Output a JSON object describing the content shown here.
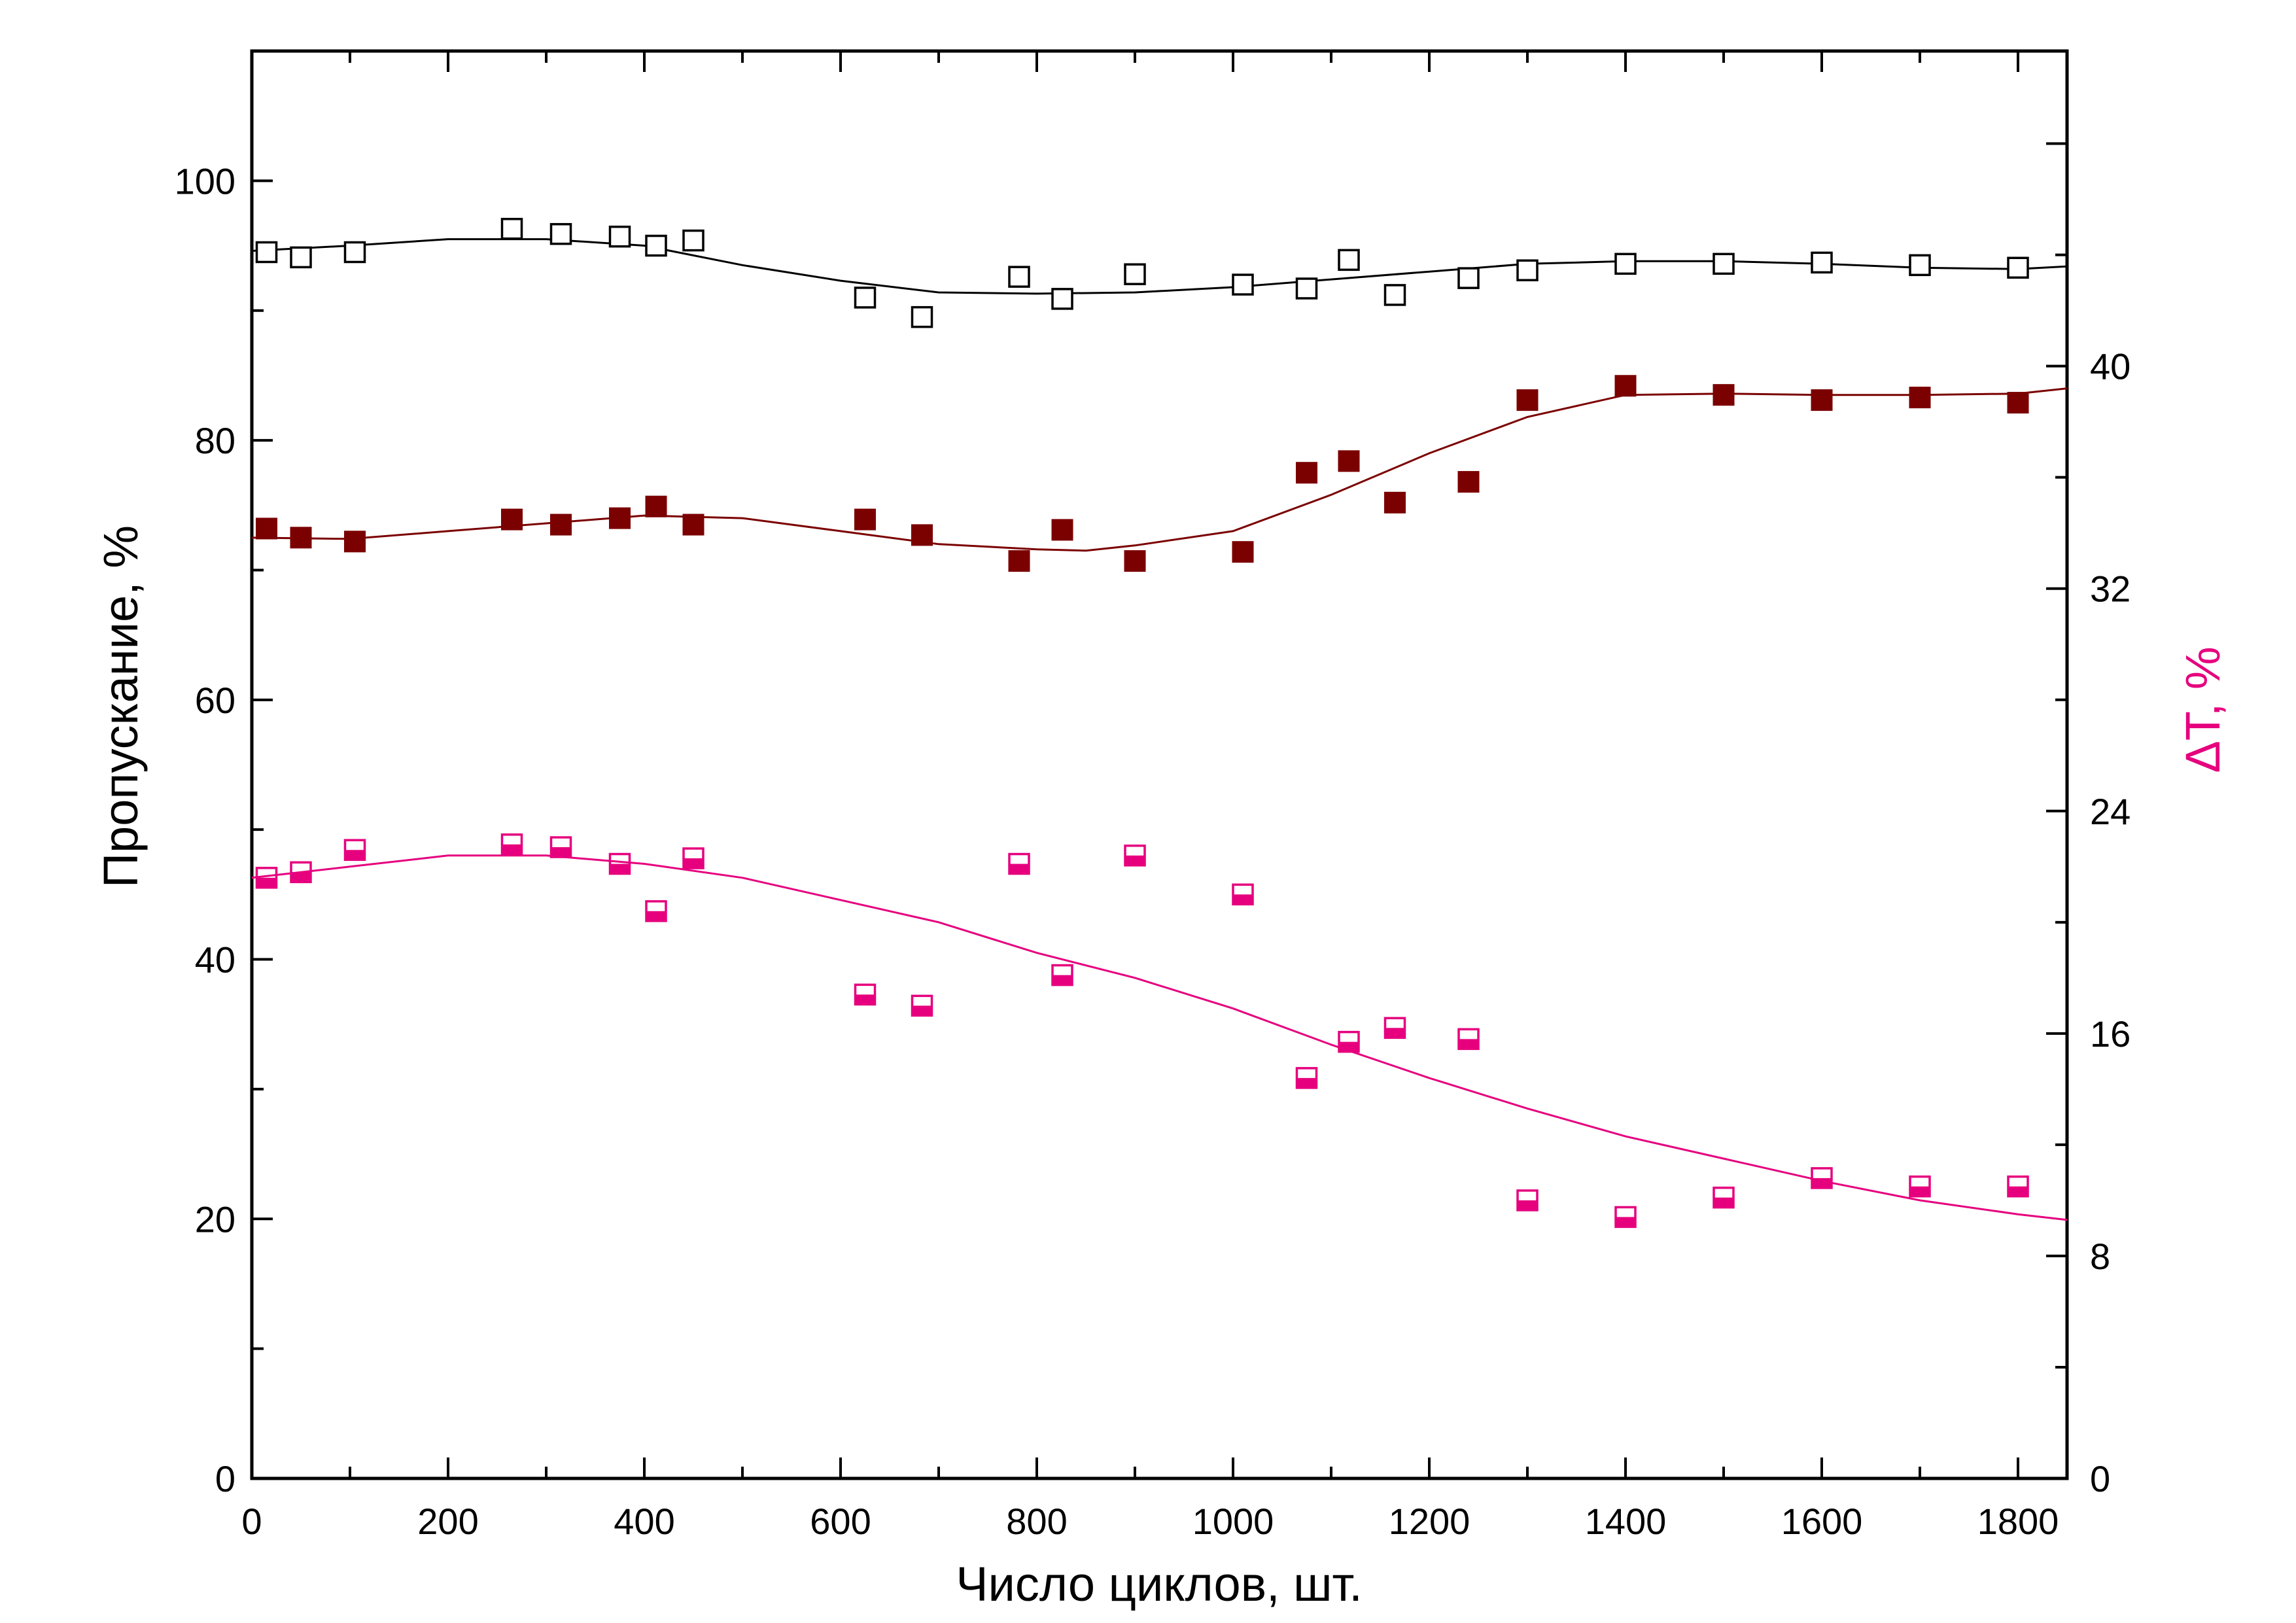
{
  "chart_data": {
    "type": "scatter",
    "xlabel": "Число циклов, шт.",
    "ylabel": "Пропускание, %",
    "y2label": "ΔT, %",
    "xlim": [
      0,
      1850
    ],
    "ylim": [
      0,
      110
    ],
    "y2lim": [
      0,
      51.33
    ],
    "x_ticks": [
      "0",
      "200",
      "400",
      "600",
      "800",
      "1000",
      "1200",
      "1400",
      "1600",
      "1800"
    ],
    "y_ticks": [
      "0",
      "20",
      "40",
      "60",
      "80",
      "100"
    ],
    "y2_ticks": [
      "0",
      "8",
      "16",
      "24",
      "32",
      "40"
    ],
    "grid": false,
    "series": [
      {
        "marker": "open-square",
        "color": "#000000",
        "axis": "left",
        "points": [
          [
            15,
            94.5
          ],
          [
            50,
            94.1
          ],
          [
            105,
            94.5
          ],
          [
            265,
            96.3
          ],
          [
            315,
            95.9
          ],
          [
            375,
            95.7
          ],
          [
            412,
            95.0
          ],
          [
            450,
            95.4
          ],
          [
            625,
            91.0
          ],
          [
            683,
            89.5
          ],
          [
            782,
            92.6
          ],
          [
            826,
            90.9
          ],
          [
            900,
            92.8
          ],
          [
            1010,
            92.0
          ],
          [
            1075,
            91.7
          ],
          [
            1118,
            93.9
          ],
          [
            1165,
            91.2
          ],
          [
            1240,
            92.5
          ],
          [
            1300,
            93.1
          ],
          [
            1400,
            93.6
          ],
          [
            1500,
            93.6
          ],
          [
            1600,
            93.7
          ],
          [
            1700,
            93.5
          ],
          [
            1800,
            93.3
          ]
        ],
        "fit": [
          [
            0,
            94.6
          ],
          [
            100,
            95.0
          ],
          [
            200,
            95.5
          ],
          [
            300,
            95.5
          ],
          [
            400,
            95.0
          ],
          [
            500,
            93.5
          ],
          [
            600,
            92.3
          ],
          [
            700,
            91.4
          ],
          [
            800,
            91.3
          ],
          [
            900,
            91.4
          ],
          [
            1000,
            91.8
          ],
          [
            1100,
            92.4
          ],
          [
            1200,
            93.0
          ],
          [
            1300,
            93.6
          ],
          [
            1400,
            93.8
          ],
          [
            1500,
            93.8
          ],
          [
            1600,
            93.6
          ],
          [
            1700,
            93.3
          ],
          [
            1800,
            93.2
          ],
          [
            1850,
            93.4
          ]
        ]
      },
      {
        "marker": "filled-square",
        "color": "#7b0000",
        "axis": "left",
        "points": [
          [
            15,
            73.2
          ],
          [
            50,
            72.5
          ],
          [
            105,
            72.2
          ],
          [
            265,
            73.9
          ],
          [
            315,
            73.5
          ],
          [
            375,
            74.0
          ],
          [
            412,
            74.9
          ],
          [
            450,
            73.5
          ],
          [
            625,
            73.9
          ],
          [
            683,
            72.7
          ],
          [
            782,
            70.7
          ],
          [
            826,
            73.1
          ],
          [
            900,
            70.7
          ],
          [
            1010,
            71.4
          ],
          [
            1075,
            77.5
          ],
          [
            1118,
            78.4
          ],
          [
            1165,
            75.2
          ],
          [
            1240,
            76.8
          ],
          [
            1300,
            83.1
          ],
          [
            1400,
            84.2
          ],
          [
            1500,
            83.5
          ],
          [
            1600,
            83.1
          ],
          [
            1700,
            83.3
          ],
          [
            1800,
            82.9
          ]
        ],
        "fit": [
          [
            0,
            72.5
          ],
          [
            100,
            72.4
          ],
          [
            200,
            73.0
          ],
          [
            300,
            73.6
          ],
          [
            400,
            74.2
          ],
          [
            500,
            74.0
          ],
          [
            600,
            73.0
          ],
          [
            700,
            72.0
          ],
          [
            800,
            71.6
          ],
          [
            850,
            71.5
          ],
          [
            900,
            71.9
          ],
          [
            1000,
            73.0
          ],
          [
            1100,
            75.8
          ],
          [
            1200,
            79.0
          ],
          [
            1300,
            81.8
          ],
          [
            1400,
            83.5
          ],
          [
            1500,
            83.6
          ],
          [
            1600,
            83.5
          ],
          [
            1700,
            83.5
          ],
          [
            1800,
            83.6
          ],
          [
            1850,
            84.0
          ]
        ]
      },
      {
        "marker": "half-filled-square",
        "color": "#e6007e",
        "axis": "right",
        "points": [
          [
            15,
            21.6
          ],
          [
            50,
            21.8
          ],
          [
            105,
            22.6
          ],
          [
            265,
            22.8
          ],
          [
            315,
            22.7
          ],
          [
            375,
            22.1
          ],
          [
            412,
            20.4
          ],
          [
            450,
            22.3
          ],
          [
            625,
            17.4
          ],
          [
            683,
            17.0
          ],
          [
            782,
            22.1
          ],
          [
            826,
            18.1
          ],
          [
            900,
            22.4
          ],
          [
            1010,
            21.0
          ],
          [
            1075,
            14.4
          ],
          [
            1118,
            15.7
          ],
          [
            1165,
            16.2
          ],
          [
            1240,
            15.8
          ],
          [
            1300,
            10.0
          ],
          [
            1400,
            9.4
          ],
          [
            1500,
            10.1
          ],
          [
            1600,
            10.8
          ],
          [
            1700,
            10.5
          ],
          [
            1800,
            10.5
          ]
        ],
        "fit": [
          [
            0,
            21.6
          ],
          [
            100,
            22.0
          ],
          [
            200,
            22.4
          ],
          [
            300,
            22.4
          ],
          [
            400,
            22.1
          ],
          [
            500,
            21.6
          ],
          [
            600,
            20.8
          ],
          [
            700,
            20.0
          ],
          [
            800,
            18.9
          ],
          [
            900,
            18.0
          ],
          [
            1000,
            16.9
          ],
          [
            1100,
            15.6
          ],
          [
            1200,
            14.4
          ],
          [
            1300,
            13.3
          ],
          [
            1400,
            12.3
          ],
          [
            1500,
            11.5
          ],
          [
            1600,
            10.7
          ],
          [
            1700,
            10.0
          ],
          [
            1800,
            9.5
          ],
          [
            1850,
            9.3
          ]
        ]
      }
    ]
  },
  "colors": {
    "axis": "#000000",
    "series_open": "#000000",
    "series_filled": "#7b0000",
    "series_half": "#e6007e",
    "right_axis_title": "#e6007e"
  }
}
